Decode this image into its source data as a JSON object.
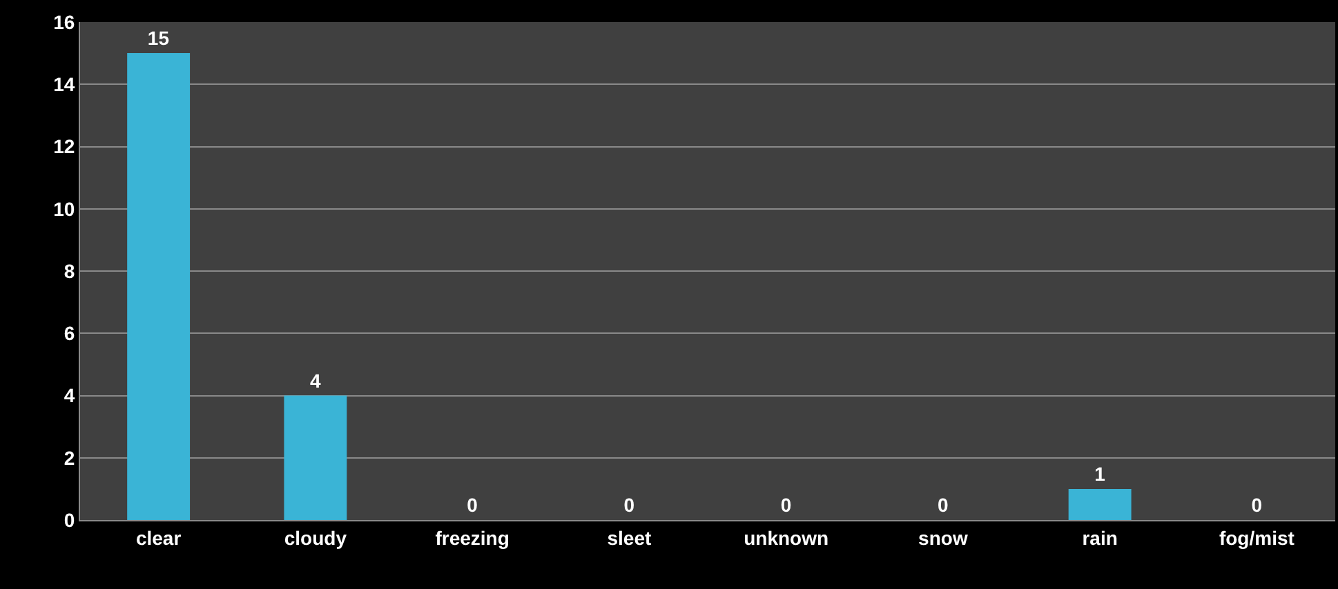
{
  "chart_data": {
    "type": "bar",
    "categories": [
      "clear",
      "cloudy",
      "freezing",
      "sleet",
      "unknown",
      "snow",
      "rain",
      "fog/mist"
    ],
    "values": [
      15,
      4,
      0,
      0,
      0,
      0,
      1,
      0
    ],
    "color": "#3ab4d6",
    "ylim": [
      0,
      16
    ],
    "yticks": [
      0,
      2,
      4,
      6,
      8,
      10,
      12,
      14,
      16
    ],
    "grid": "y",
    "data_labels": true
  }
}
